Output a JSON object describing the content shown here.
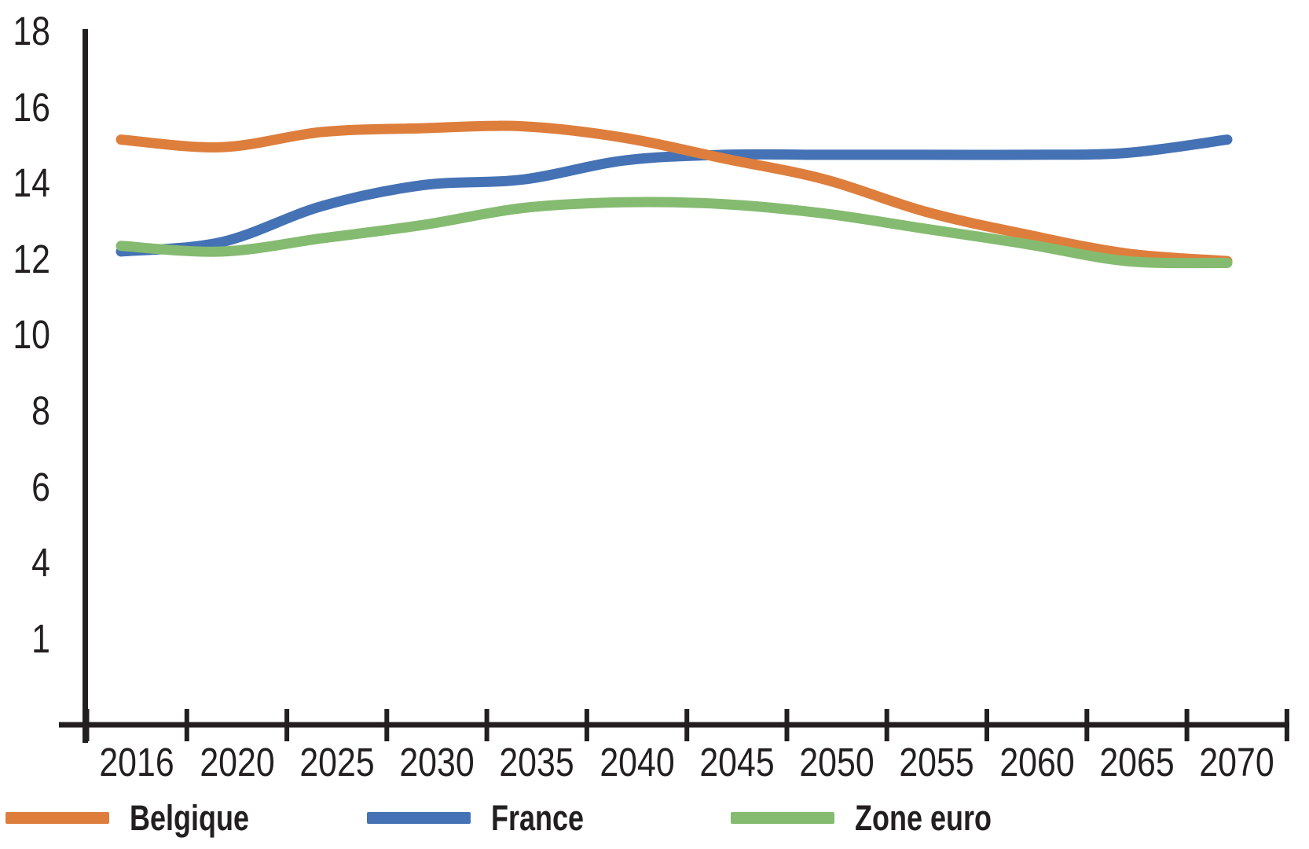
{
  "chart_data": {
    "type": "line",
    "x": [
      2016,
      2020,
      2025,
      2030,
      2035,
      2040,
      2045,
      2050,
      2055,
      2060,
      2065,
      2070
    ],
    "x_tick_labels": [
      "2016",
      "2020",
      "2025",
      "2030",
      "2035",
      "2040",
      "2045",
      "2050",
      "2055",
      "2060",
      "2065",
      "2070"
    ],
    "y_tick_labels": [
      "18",
      "16",
      "14",
      "12",
      "10",
      "8",
      "6",
      "4",
      "1"
    ],
    "ylim": [
      0,
      18
    ],
    "grid": "off",
    "legend_position": "bottom",
    "series": [
      {
        "name": "Belgique",
        "color": "#DE7E3D",
        "values": [
          15.15,
          14.95,
          15.35,
          15.45,
          15.5,
          15.2,
          14.65,
          14.1,
          13.25,
          12.65,
          12.15,
          11.95
        ]
      },
      {
        "name": "France",
        "color": "#4472B4",
        "values": [
          12.2,
          12.45,
          13.4,
          13.95,
          14.1,
          14.6,
          14.75,
          14.75,
          14.75,
          14.75,
          14.8,
          15.15
        ]
      },
      {
        "name": "Zone euro",
        "color": "#84BB70",
        "values": [
          12.35,
          12.2,
          12.55,
          12.9,
          13.35,
          13.5,
          13.45,
          13.2,
          12.8,
          12.4,
          11.95,
          11.9
        ]
      }
    ],
    "axis_color": "#231F20"
  }
}
